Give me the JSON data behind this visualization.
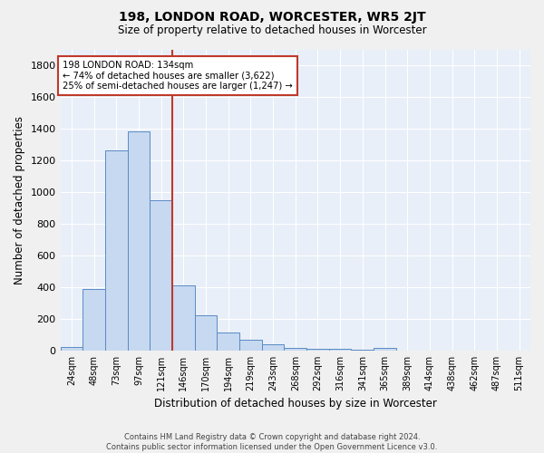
{
  "title": "198, LONDON ROAD, WORCESTER, WR5 2JT",
  "subtitle": "Size of property relative to detached houses in Worcester",
  "xlabel": "Distribution of detached houses by size in Worcester",
  "ylabel": "Number of detached properties",
  "footer_line1": "Contains HM Land Registry data © Crown copyright and database right 2024.",
  "footer_line2": "Contains public sector information licensed under the Open Government Licence v3.0.",
  "bar_labels": [
    "24sqm",
    "48sqm",
    "73sqm",
    "97sqm",
    "121sqm",
    "146sqm",
    "170sqm",
    "194sqm",
    "219sqm",
    "243sqm",
    "268sqm",
    "292sqm",
    "316sqm",
    "341sqm",
    "365sqm",
    "389sqm",
    "414sqm",
    "438sqm",
    "462sqm",
    "487sqm",
    "511sqm"
  ],
  "bar_values": [
    25,
    390,
    1265,
    1385,
    950,
    410,
    225,
    115,
    68,
    42,
    18,
    10,
    12,
    8,
    18,
    0,
    0,
    0,
    0,
    0,
    0
  ],
  "bar_color": "#c6d9f0",
  "bar_edge_color": "#5b8ac5",
  "bg_color": "#e8eff8",
  "grid_color": "#ffffff",
  "vline_x": 4.5,
  "vline_color": "#c0392b",
  "annotation_text": "198 LONDON ROAD: 134sqm\n← 74% of detached houses are smaller (3,622)\n25% of semi-detached houses are larger (1,247) →",
  "annotation_box_color": "#ffffff",
  "annotation_box_edge": "#c0392b",
  "ylim": [
    0,
    1900
  ],
  "yticks": [
    0,
    200,
    400,
    600,
    800,
    1000,
    1200,
    1400,
    1600,
    1800
  ],
  "fig_bg": "#f0f0f0"
}
